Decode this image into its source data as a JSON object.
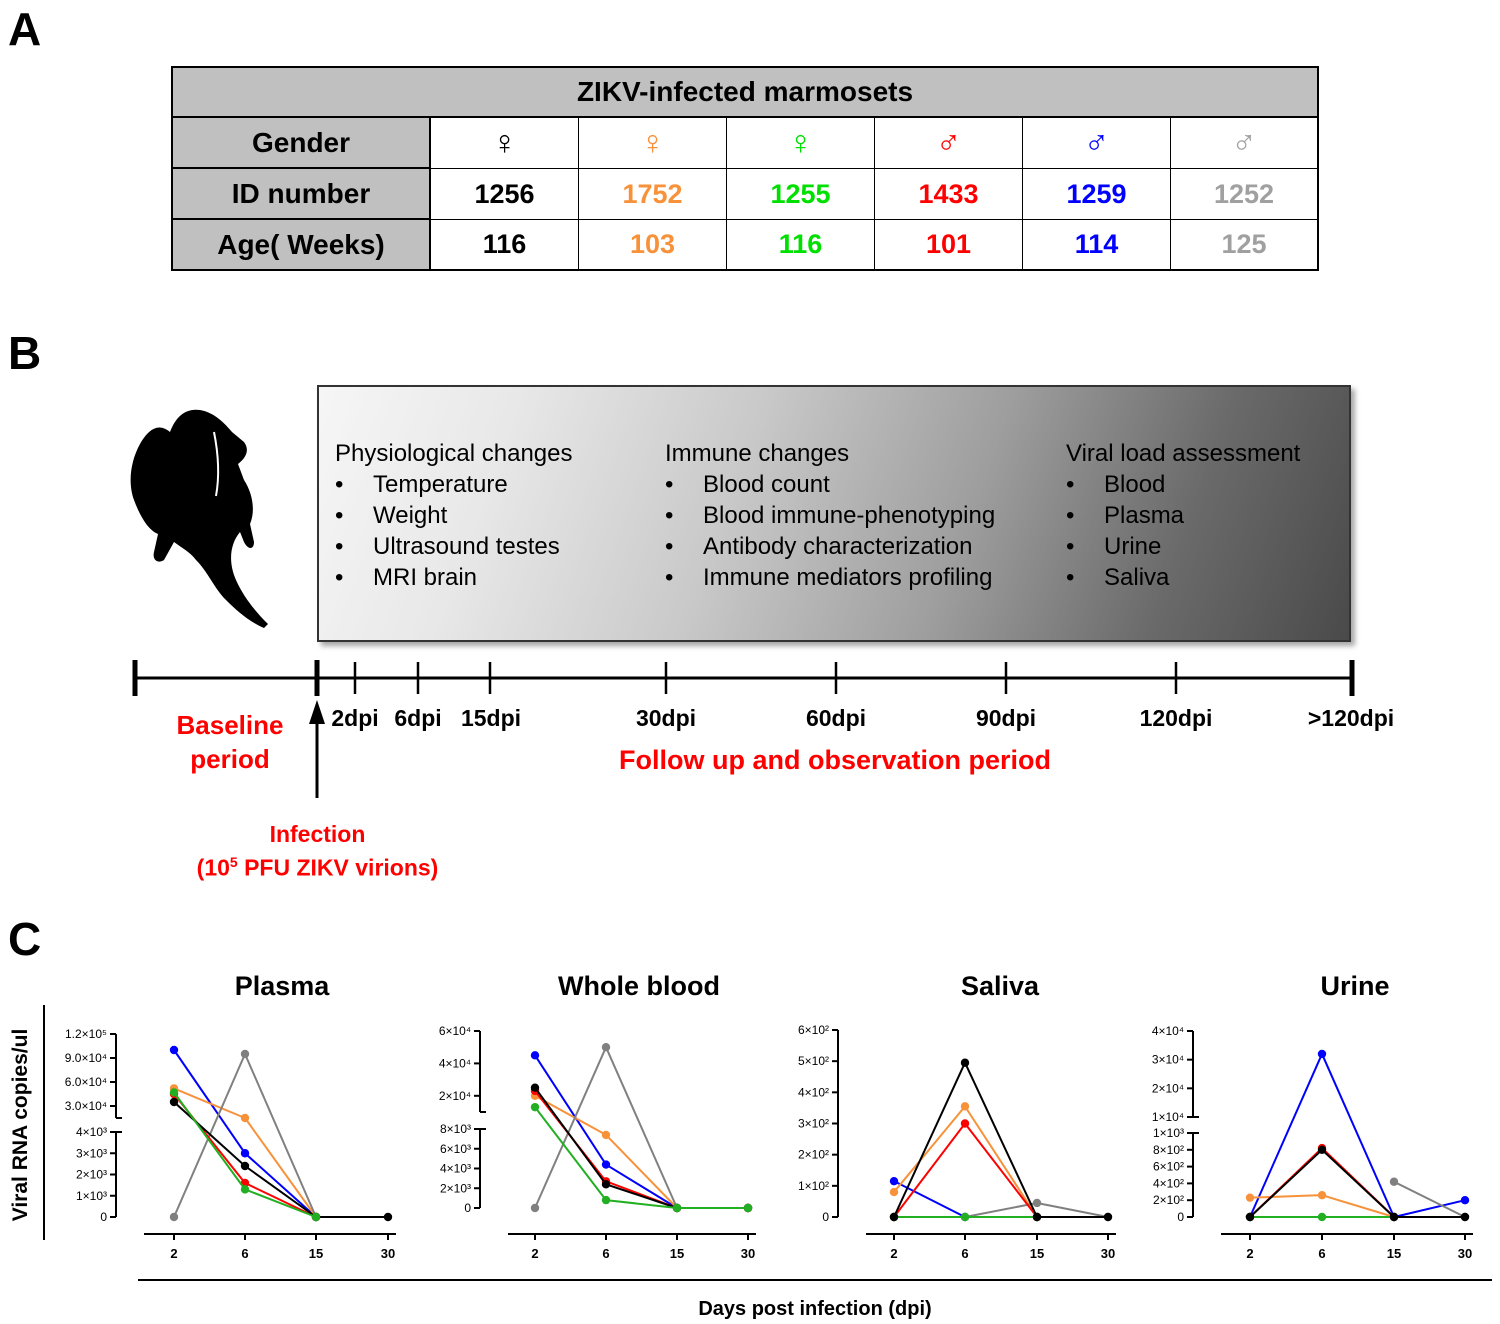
{
  "panel_letters": {
    "a": "A",
    "b": "B",
    "c": "C"
  },
  "tableA": {
    "title": "ZIKV-infected marmosets",
    "row_headers": [
      "Gender",
      "ID number",
      "Age( Weeks)"
    ],
    "animals": [
      {
        "gender": "♀",
        "id": "1256",
        "age": "116",
        "color": "#000000"
      },
      {
        "gender": "♀",
        "id": "1752",
        "age": "103",
        "color": "#f7923a"
      },
      {
        "gender": "♀",
        "id": "1255",
        "age": "116",
        "color": "#00e000"
      },
      {
        "gender": "♂",
        "id": "1433",
        "age": "101",
        "color": "#ff0000"
      },
      {
        "gender": "♂",
        "id": "1259",
        "age": "114",
        "color": "#0000ff"
      },
      {
        "gender": "♂",
        "id": "1252",
        "age": "125",
        "color": "#a0a0a0"
      }
    ]
  },
  "panelB": {
    "groups": [
      {
        "title": "Physiological changes",
        "items": [
          "Temperature",
          "Weight",
          "Ultrasound testes",
          "MRI brain"
        ]
      },
      {
        "title": "Immune changes",
        "items": [
          "Blood count",
          "Blood immune-phenotyping",
          "Antibody characterization",
          "Immune mediators profiling"
        ]
      },
      {
        "title": "Viral load assessment",
        "items": [
          "Blood",
          "Plasma",
          "Urine",
          "Saliva"
        ]
      }
    ],
    "timeline_labels": [
      "2dpi",
      "6dpi",
      "15dpi",
      "30dpi",
      "60dpi",
      "90dpi",
      "120dpi",
      ">120dpi"
    ],
    "baseline_line1": "Baseline",
    "baseline_line2": "period",
    "followup": "Follow up and observation period",
    "infection_line1": "Infection",
    "infection_line2_pre": "(10",
    "infection_line2_sup": "5",
    "infection_line2_post": " PFU ZIKV virions)"
  },
  "panelC": {
    "ylabel": "Viral RNA copies/ul",
    "xlabel": "Days post infection (dpi)"
  },
  "chart_data": [
    {
      "type": "line",
      "title": "Plasma",
      "x": [
        2,
        6,
        15,
        30
      ],
      "xlabel": "",
      "ylabel": "Viral RNA copies/ul",
      "broken_axis": true,
      "lower_ticks": [
        "0",
        "1×10³",
        "2×10³",
        "3×10³",
        "4×10³"
      ],
      "upper_ticks": [
        "3.0×10⁴",
        "6.0×10⁴",
        "9.0×10⁴",
        "1.2×10⁵"
      ],
      "series": [
        {
          "color": "#0000ff",
          "values": [
            100000,
            3000,
            0,
            null
          ]
        },
        {
          "color": "#f7923a",
          "values": [
            52000,
            15000,
            0,
            null
          ]
        },
        {
          "color": "#808080",
          "values": [
            0,
            95000,
            0,
            null
          ]
        },
        {
          "color": "#ff0000",
          "values": [
            45000,
            1600,
            0,
            null
          ]
        },
        {
          "color": "#000000",
          "values": [
            35000,
            2400,
            0,
            0
          ]
        },
        {
          "color": "#22b022",
          "values": [
            47000,
            1300,
            0,
            null
          ]
        }
      ]
    },
    {
      "type": "line",
      "title": "Whole blood",
      "x": [
        2,
        6,
        15,
        30
      ],
      "xlabel": "",
      "ylabel": "",
      "broken_axis": true,
      "lower_ticks": [
        "0",
        "2×10³",
        "4×10³",
        "6×10³",
        "8×10³"
      ],
      "upper_ticks": [
        "2×10⁴",
        "4×10⁴",
        "6×10⁴"
      ],
      "series": [
        {
          "color": "#0000ff",
          "values": [
            45000,
            4400,
            0,
            0
          ]
        },
        {
          "color": "#f7923a",
          "values": [
            20000,
            7400,
            0,
            0
          ]
        },
        {
          "color": "#808080",
          "values": [
            0,
            50000,
            0,
            0
          ]
        },
        {
          "color": "#ff0000",
          "values": [
            23000,
            2700,
            0,
            0
          ]
        },
        {
          "color": "#000000",
          "values": [
            25000,
            2400,
            0,
            0
          ]
        },
        {
          "color": "#22b022",
          "values": [
            13000,
            800,
            0,
            0
          ]
        }
      ]
    },
    {
      "type": "line",
      "title": "Saliva",
      "x": [
        2,
        6,
        15,
        30
      ],
      "xlabel": "",
      "ylabel": "",
      "broken_axis": false,
      "ticks": [
        "0",
        "1×10²",
        "2×10²",
        "3×10²",
        "4×10²",
        "5×10²",
        "6×10²"
      ],
      "ylim": [
        0,
        600
      ],
      "series": [
        {
          "color": "#0000ff",
          "values": [
            115,
            0,
            0,
            null
          ]
        },
        {
          "color": "#f7923a",
          "values": [
            80,
            355,
            0,
            null
          ]
        },
        {
          "color": "#808080",
          "values": [
            0,
            0,
            45,
            0
          ]
        },
        {
          "color": "#ff0000",
          "values": [
            0,
            300,
            0,
            null
          ]
        },
        {
          "color": "#22b022",
          "values": [
            0,
            0,
            0,
            null
          ]
        },
        {
          "color": "#000000",
          "values": [
            0,
            495,
            0,
            0
          ]
        }
      ]
    },
    {
      "type": "line",
      "title": "Urine",
      "x": [
        2,
        6,
        15,
        30
      ],
      "xlabel": "",
      "ylabel": "",
      "broken_axis": true,
      "lower_ticks": [
        "0",
        "2×10²",
        "4×10²",
        "6×10²",
        "8×10²",
        "1×10³"
      ],
      "upper_ticks": [
        "1×10⁴",
        "2×10⁴",
        "3×10⁴",
        "4×10⁴"
      ],
      "series": [
        {
          "color": "#0000ff",
          "values": [
            0,
            32000,
            0,
            200
          ]
        },
        {
          "color": "#f7923a",
          "values": [
            230,
            260,
            0,
            null
          ]
        },
        {
          "color": "#808080",
          "values": [
            null,
            null,
            420,
            0
          ]
        },
        {
          "color": "#ff0000",
          "values": [
            0,
            820,
            0,
            null
          ]
        },
        {
          "color": "#22b022",
          "values": [
            0,
            0,
            0,
            null
          ]
        },
        {
          "color": "#000000",
          "values": [
            0,
            800,
            0,
            0
          ]
        }
      ]
    }
  ]
}
